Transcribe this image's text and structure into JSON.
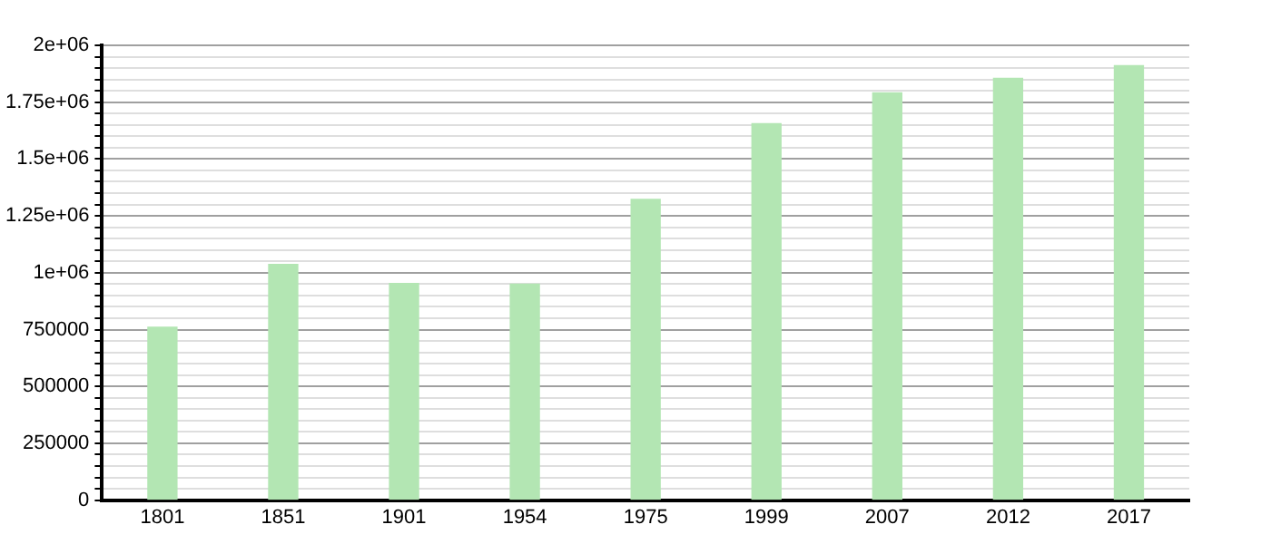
{
  "chart_data": {
    "type": "bar",
    "categories": [
      "1801",
      "1851",
      "1901",
      "1954",
      "1975",
      "1999",
      "2007",
      "2012",
      "2017"
    ],
    "values": [
      760000,
      1036000,
      953000,
      950000,
      1323000,
      1655000,
      1791000,
      1855000,
      1911000
    ],
    "color": "#b3e6b3",
    "ylim": [
      0,
      2000000
    ],
    "yticks": [
      0,
      {
        "value": 50000,
        "label": null
      },
      {
        "value": 100000,
        "label": null
      },
      {
        "value": 150000,
        "label": null
      },
      {
        "value": 200000,
        "label": null
      },
      250000,
      {
        "value": 300000,
        "label": null
      },
      {
        "value": 350000,
        "label": null
      },
      {
        "value": 400000,
        "label": null
      },
      {
        "value": 450000,
        "label": null
      },
      500000,
      {
        "value": 550000,
        "label": null
      },
      {
        "value": 600000,
        "label": null
      },
      {
        "value": 650000,
        "label": null
      },
      {
        "value": 700000,
        "label": null
      },
      750000,
      {
        "value": 800000,
        "label": null
      },
      {
        "value": 850000,
        "label": null
      },
      {
        "value": 900000,
        "label": null
      },
      {
        "value": 950000,
        "label": null
      },
      {
        "value": 1000000,
        "label": "1e+06"
      },
      {
        "value": 1050000,
        "label": null
      },
      {
        "value": 1100000,
        "label": null
      },
      {
        "value": 1150000,
        "label": null
      },
      {
        "value": 1200000,
        "label": null
      },
      {
        "value": 1250000,
        "label": "1.25e+06"
      },
      {
        "value": 1300000,
        "label": null
      },
      {
        "value": 1350000,
        "label": null
      },
      {
        "value": 1400000,
        "label": null
      },
      {
        "value": 1450000,
        "label": null
      },
      {
        "value": 1500000,
        "label": "1.5e+06"
      },
      {
        "value": 1550000,
        "label": null
      },
      {
        "value": 1600000,
        "label": null
      },
      {
        "value": 1650000,
        "label": null
      },
      {
        "value": 1700000,
        "label": null
      },
      {
        "value": 1750000,
        "label": "1.75e+06"
      },
      {
        "value": 1800000,
        "label": null
      },
      {
        "value": 1850000,
        "label": null
      },
      {
        "value": 1900000,
        "label": null
      },
      {
        "value": 1950000,
        "label": null
      },
      {
        "value": 2000000,
        "label": "2e+06"
      }
    ],
    "grid": "y",
    "legend": false
  }
}
